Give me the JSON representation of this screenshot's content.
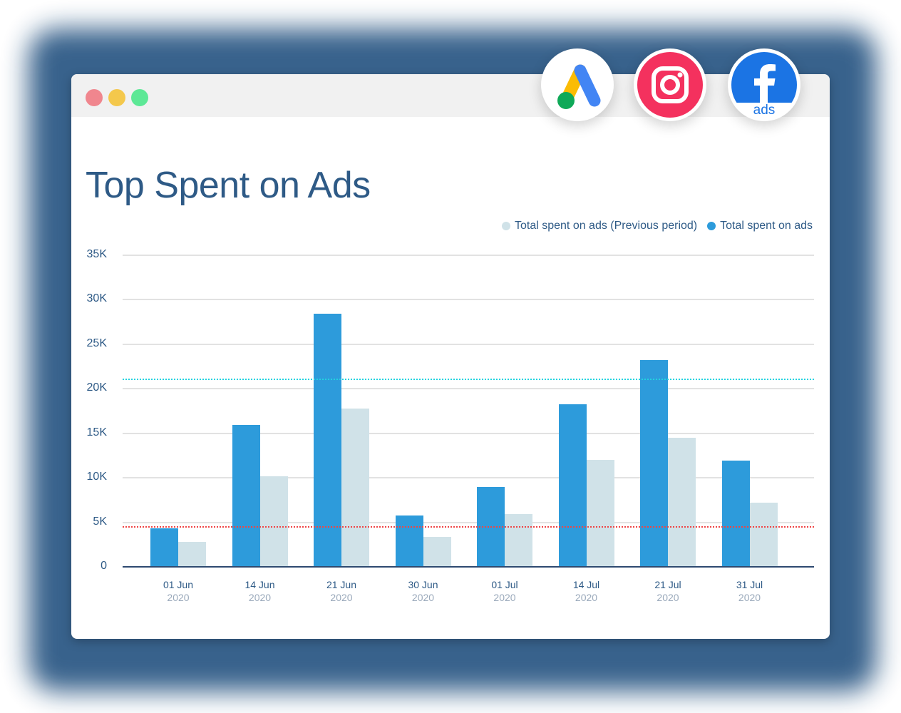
{
  "window": {
    "controls": [
      {
        "name": "close",
        "color": "#f0868e"
      },
      {
        "name": "minimize",
        "color": "#f4c84c"
      },
      {
        "name": "maximize",
        "color": "#5de896"
      }
    ]
  },
  "logos": [
    {
      "name": "google-ads-logo"
    },
    {
      "name": "instagram-logo"
    },
    {
      "name": "facebook-ads-logo",
      "label": "ads"
    }
  ],
  "title": "Top Spent on Ads",
  "legend": {
    "previous": "Total spent on ads (Previous period)",
    "current": "Total spent on ads"
  },
  "colors": {
    "current": "#2d9bdb",
    "previous": "#d0e2e8",
    "avg_current_line": "#22d3e0",
    "avg_previous_line": "#ef4444",
    "axis_text": "#2e5a86"
  },
  "chart_data": {
    "type": "bar",
    "title": "Top Spent on Ads",
    "xlabel": "",
    "ylabel": "",
    "ylim": [
      0,
      35000
    ],
    "yticks": [
      "0",
      "5K",
      "10K",
      "15K",
      "20K",
      "25K",
      "30K",
      "35K"
    ],
    "grid": true,
    "legend_position": "top-right",
    "categories": [
      "01 Jun 2020",
      "14 Jun 2020",
      "21 Jun 2020",
      "30 Jun 2020",
      "01 Jul 2020",
      "14 Jul 2020",
      "21 Jul 2020",
      "31 Jul 2020"
    ],
    "category_labels": [
      {
        "date": "01 Jun",
        "year": "2020"
      },
      {
        "date": "14 Jun",
        "year": "2020"
      },
      {
        "date": "21 Jun",
        "year": "2020"
      },
      {
        "date": "30 Jun",
        "year": "2020"
      },
      {
        "date": "01 Jul",
        "year": "2020"
      },
      {
        "date": "14 Jul",
        "year": "2020"
      },
      {
        "date": "21 Jul",
        "year": "2020"
      },
      {
        "date": "31 Jul",
        "year": "2020"
      }
    ],
    "series": [
      {
        "name": "Total spent on ads",
        "values": [
          4300,
          15900,
          28400,
          5800,
          9000,
          18300,
          23200,
          11900
        ]
      },
      {
        "name": "Total spent on ads (Previous period)",
        "values": [
          2800,
          10200,
          17800,
          3400,
          5900,
          12000,
          14500,
          7200
        ]
      }
    ],
    "reference_lines": [
      {
        "name": "current-average",
        "value": 21100,
        "style": "dotted",
        "color": "#22d3e0"
      },
      {
        "name": "previous-average",
        "value": 4500,
        "style": "dotted",
        "color": "#ef4444"
      }
    ]
  }
}
